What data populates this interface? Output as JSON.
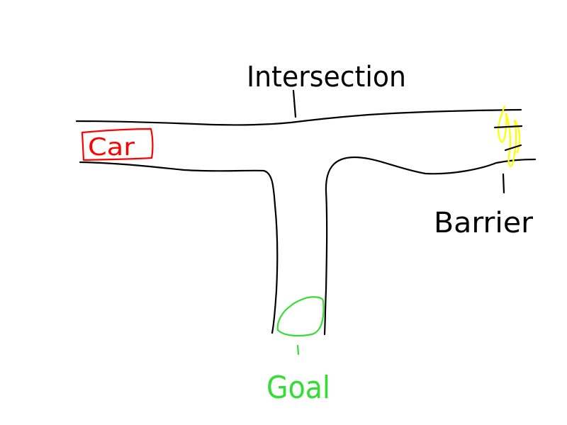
{
  "labels": {
    "intersection": "Intersection",
    "barrier": "Barrier",
    "car": "Car",
    "goal": "Goal"
  },
  "colors": {
    "road": "#000000",
    "car": "#ff0000",
    "goal": "#33dd33",
    "barrier": "#ffff00",
    "text": "#000000"
  }
}
